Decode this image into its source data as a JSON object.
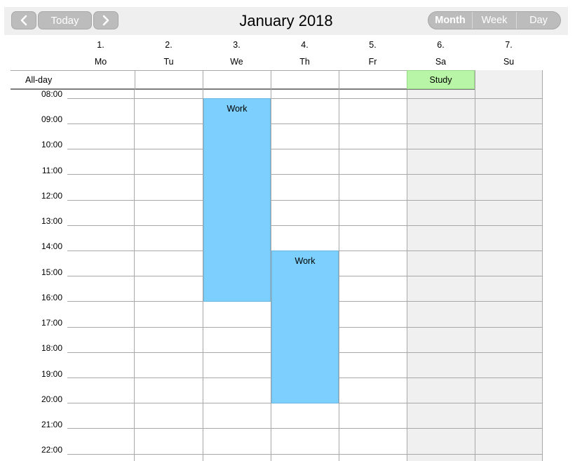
{
  "toolbar": {
    "today_label": "Today",
    "title": "January 2018",
    "views": [
      "Month",
      "Week",
      "Day"
    ]
  },
  "days": [
    {
      "num": "1.",
      "name": "Mo"
    },
    {
      "num": "2.",
      "name": "Tu"
    },
    {
      "num": "3.",
      "name": "We"
    },
    {
      "num": "4.",
      "name": "Th"
    },
    {
      "num": "5.",
      "name": "Fr"
    },
    {
      "num": "6.",
      "name": "Sa"
    },
    {
      "num": "7.",
      "name": "Su"
    }
  ],
  "allday_label": "All-day",
  "hours": [
    "08:00",
    "09:00",
    "10:00",
    "11:00",
    "12:00",
    "13:00",
    "14:00",
    "15:00",
    "16:00",
    "17:00",
    "18:00",
    "19:00",
    "20:00",
    "21:00",
    "22:00"
  ],
  "events": [
    {
      "title": "Work",
      "start": "08:00",
      "end": "16:00",
      "day": "We"
    },
    {
      "title": "Work",
      "start": "14:00",
      "end": "20:00",
      "day": "Th"
    }
  ],
  "allday_events": [
    {
      "title": "Study",
      "day": "Sa"
    }
  ],
  "colors": {
    "event_work": "#7dcffe",
    "event_study": "#b8f5a6",
    "weekend_bg": "#f0f0f0",
    "button_bg": "#bcbcbc"
  }
}
